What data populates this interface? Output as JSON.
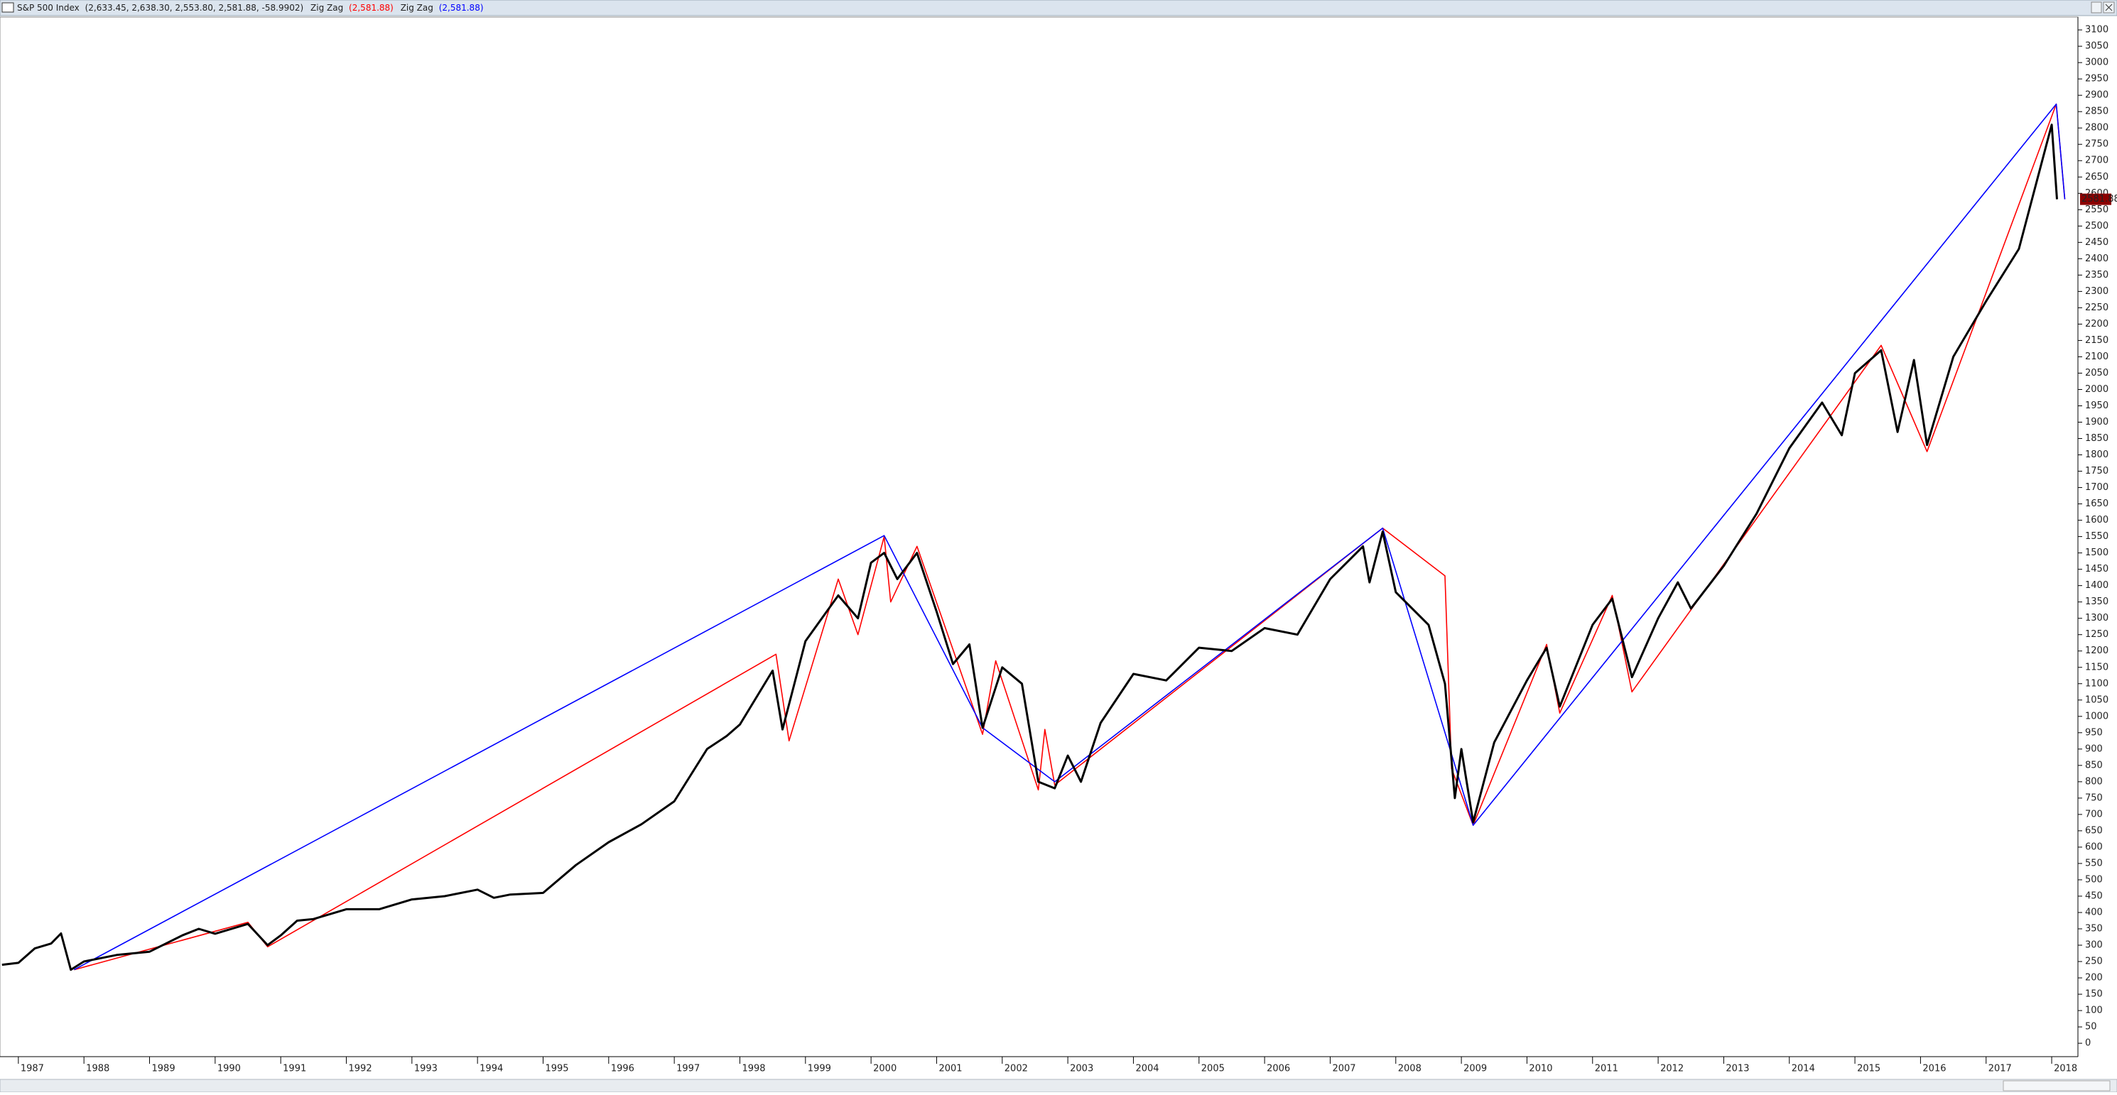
{
  "chart_data": {
    "type": "line",
    "xlim": [
      1986.72,
      2018.4
    ],
    "ylim": [
      -41,
      3135
    ],
    "xticks": [
      1987,
      1988,
      1989,
      1990,
      1991,
      1992,
      1993,
      1994,
      1995,
      1996,
      1997,
      1998,
      1999,
      2000,
      2001,
      2002,
      2003,
      2004,
      2005,
      2006,
      2007,
      2008,
      2009,
      2010,
      2011,
      2012,
      2013,
      2014,
      2015,
      2016,
      2017,
      2018
    ],
    "yticks": [
      0,
      50,
      100,
      150,
      200,
      250,
      300,
      350,
      400,
      450,
      500,
      550,
      600,
      650,
      700,
      750,
      800,
      850,
      900,
      950,
      1000,
      1050,
      1100,
      1150,
      1200,
      1250,
      1300,
      1350,
      1400,
      1450,
      1500,
      1550,
      1600,
      1650,
      1700,
      1750,
      1800,
      1850,
      1900,
      1950,
      2000,
      2050,
      2100,
      2150,
      2200,
      2250,
      2300,
      2350,
      2400,
      2450,
      2500,
      2550,
      2600,
      2650,
      2700,
      2750,
      2800,
      2850,
      2900,
      2950,
      3000,
      3050,
      3100
    ],
    "last_price": 2581.88,
    "series": [
      {
        "name": "S&P 500 Index",
        "legend_value": "(2,633.45, 2,638.30, 2,553.80, 2,581.88, -58.9902)",
        "color": "#000000",
        "x": [
          1986.75,
          1987.0,
          1987.25,
          1987.5,
          1987.65,
          1987.8,
          1988.0,
          1988.5,
          1989.0,
          1989.5,
          1989.75,
          1990.0,
          1990.5,
          1990.8,
          1991.0,
          1991.25,
          1991.5,
          1992.0,
          1992.5,
          1993.0,
          1993.5,
          1994.0,
          1994.25,
          1994.5,
          1995.0,
          1995.5,
          1996.0,
          1996.5,
          1997.0,
          1997.5,
          1997.8,
          1998.0,
          1998.5,
          1998.65,
          1999.0,
          1999.5,
          1999.8,
          2000.0,
          2000.2,
          2000.4,
          2000.7,
          2001.0,
          2001.25,
          2001.5,
          2001.7,
          2002.0,
          2002.3,
          2002.55,
          2002.8,
          2003.0,
          2003.2,
          2003.5,
          2004.0,
          2004.5,
          2005.0,
          2005.5,
          2006.0,
          2006.5,
          2007.0,
          2007.5,
          2007.6,
          2007.8,
          2008.0,
          2008.5,
          2008.75,
          2008.9,
          2009.0,
          2009.18,
          2009.5,
          2010.0,
          2010.3,
          2010.5,
          2011.0,
          2011.3,
          2011.6,
          2012.0,
          2012.3,
          2012.5,
          2013.0,
          2013.5,
          2014.0,
          2014.5,
          2014.8,
          2015.0,
          2015.4,
          2015.65,
          2015.9,
          2016.1,
          2016.5,
          2017.0,
          2017.5,
          2018.0,
          2018.08
        ],
        "values": [
          240,
          246,
          290,
          305,
          336,
          225,
          250,
          270,
          280,
          330,
          350,
          335,
          365,
          300,
          330,
          375,
          380,
          410,
          410,
          440,
          450,
          470,
          445,
          455,
          460,
          545,
          615,
          670,
          740,
          900,
          940,
          975,
          1140,
          960,
          1230,
          1370,
          1300,
          1470,
          1500,
          1420,
          1500,
          1320,
          1160,
          1220,
          965,
          1150,
          1100,
          800,
          780,
          880,
          800,
          980,
          1130,
          1110,
          1210,
          1200,
          1270,
          1250,
          1420,
          1520,
          1410,
          1565,
          1380,
          1280,
          1100,
          750,
          900,
          676,
          920,
          1110,
          1210,
          1030,
          1280,
          1360,
          1120,
          1300,
          1410,
          1330,
          1460,
          1620,
          1820,
          1960,
          1860,
          2050,
          2120,
          1870,
          2090,
          1830,
          2100,
          2270,
          2430,
          2810,
          2581.88
        ]
      },
      {
        "name": "Zig Zag",
        "legend_value": "(2,581.88)",
        "color": "#ff0000",
        "x": [
          1987.85,
          1990.5,
          1990.8,
          1998.55,
          1998.75,
          1999.5,
          1999.8,
          2000.2,
          2000.3,
          2000.7,
          2001.7,
          2001.9,
          2002.55,
          2002.65,
          2002.8,
          2007.8,
          2008.75,
          2008.85,
          2009.18,
          2010.3,
          2010.5,
          2011.3,
          2011.6,
          2015.4,
          2016.1,
          2018.07,
          2018.2
        ],
        "values": [
          225,
          370,
          295,
          1190,
          925,
          1420,
          1250,
          1550,
          1350,
          1520,
          945,
          1170,
          775,
          960,
          790,
          1576,
          1430,
          840,
          667,
          1220,
          1010,
          1370,
          1075,
          2135,
          1810,
          2873,
          2581.88
        ]
      },
      {
        "name": "Zig Zag",
        "legend_value": "(2,581.88)",
        "color": "#0000ff",
        "x": [
          1987.85,
          2000.2,
          2001.7,
          2002.8,
          2007.8,
          2009.18,
          2018.07,
          2018.2
        ],
        "values": [
          225,
          1553,
          965,
          800,
          1576,
          667,
          2873,
          2581.88
        ]
      }
    ]
  }
}
